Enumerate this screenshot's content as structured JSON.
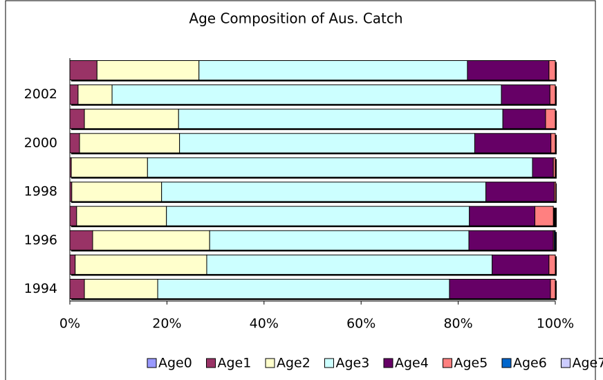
{
  "chart_data": {
    "type": "stacked-bar-horizontal",
    "title": "Age Composition of Aus. Catch",
    "categories": [
      "1994",
      null,
      "1996",
      null,
      "1998",
      null,
      "2000",
      null,
      "2002",
      null
    ],
    "series": [
      {
        "name": "Age0",
        "color": "#9999ff",
        "values": [
          0,
          0,
          0,
          0,
          0,
          0,
          0,
          0,
          0,
          0
        ]
      },
      {
        "name": "Age1",
        "color": "#993366",
        "values": [
          3,
          1.1,
          4.7,
          1.4,
          0.4,
          0.3,
          2,
          3,
          1.7,
          5.6
        ]
      },
      {
        "name": "Age2",
        "color": "#ffffcc",
        "values": [
          15.1,
          27.1,
          24.1,
          18.5,
          18.5,
          15.7,
          20.6,
          19.4,
          7,
          21
        ]
      },
      {
        "name": "Age3",
        "color": "#ccffff",
        "values": [
          60.1,
          58.8,
          53.4,
          62.4,
          66.8,
          79.3,
          60.8,
          66.8,
          80.2,
          55.3
        ]
      },
      {
        "name": "Age4",
        "color": "#660066",
        "values": [
          20.8,
          11.7,
          17.4,
          13.5,
          14.1,
          4.3,
          15.7,
          8.8,
          10,
          16.8
        ]
      },
      {
        "name": "Age5",
        "color": "#ff8080",
        "values": [
          1,
          1.3,
          0.2,
          3.8,
          0.3,
          0.4,
          0.9,
          2,
          1.1,
          1.3
        ]
      },
      {
        "name": "Age6",
        "color": "#0066cc",
        "values": [
          0,
          0,
          0.2,
          0,
          0,
          0,
          0,
          0,
          0,
          0
        ]
      },
      {
        "name": "Age7",
        "color": "#ccccff",
        "values": [
          0,
          0,
          0,
          0,
          0,
          0,
          0,
          0,
          0,
          0
        ]
      }
    ],
    "xlim": [
      0,
      100
    ],
    "xticks": [
      {
        "value": 0,
        "label": "0%"
      },
      {
        "value": 20,
        "label": "20%"
      },
      {
        "value": 40,
        "label": "40%"
      },
      {
        "value": 60,
        "label": "60%"
      },
      {
        "value": 80,
        "label": "80%"
      },
      {
        "value": 100,
        "label": "100%"
      }
    ],
    "legend": "bottom"
  }
}
